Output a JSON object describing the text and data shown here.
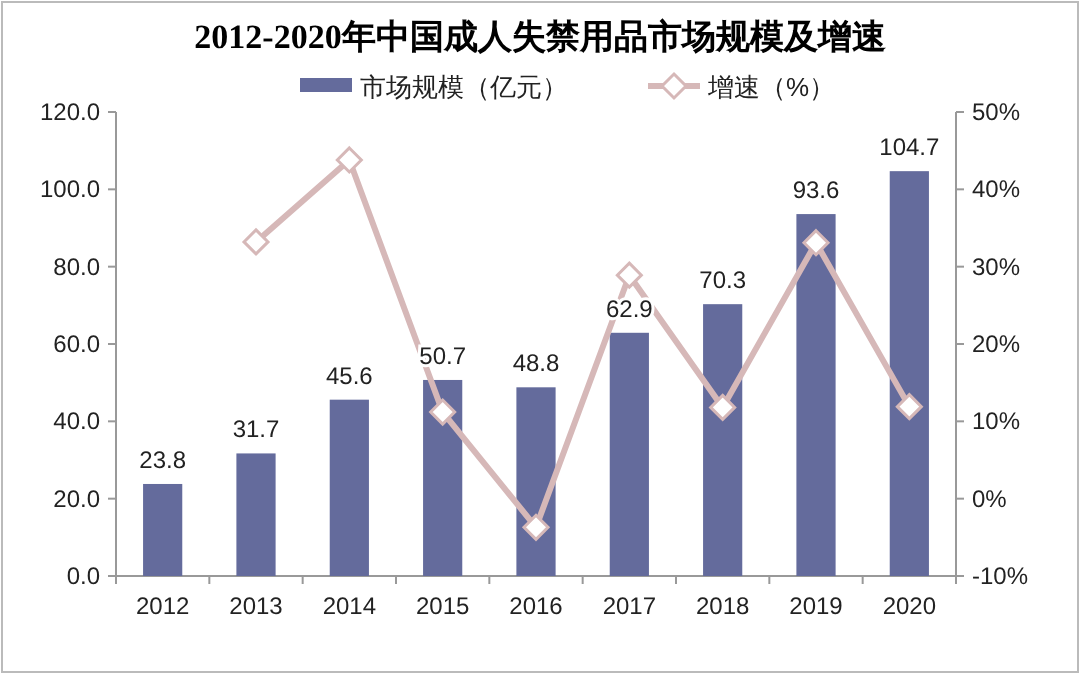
{
  "chart_data": {
    "type": "bar",
    "title": "2012-2020年中国成人失禁用品市场规模及增速",
    "categories": [
      "2012",
      "2013",
      "2014",
      "2015",
      "2016",
      "2017",
      "2018",
      "2019",
      "2020"
    ],
    "series": [
      {
        "name": "市场规模（亿元）",
        "color": "#646b9c",
        "values": [
          23.8,
          31.7,
          45.6,
          50.7,
          48.8,
          62.9,
          70.3,
          93.6,
          104.7
        ],
        "value_labels": [
          "23.8",
          "31.7",
          "45.6",
          "50.7",
          "48.8",
          "62.9",
          "70.3",
          "93.6",
          "104.7"
        ]
      },
      {
        "name": "增速（%）",
        "type": "line",
        "axis": "y2",
        "color": "#d6b8b8",
        "marker": "diamond",
        "values": [
          null,
          33.2,
          43.8,
          11.2,
          -3.7,
          28.9,
          11.8,
          33.1,
          11.9
        ]
      }
    ],
    "ylim": [
      0,
      120
    ],
    "yticks": [
      {
        "value": 0,
        "label": "0.0"
      },
      {
        "value": 20,
        "label": "20.0"
      },
      {
        "value": 40,
        "label": "40.0"
      },
      {
        "value": 60,
        "label": "60.0"
      },
      {
        "value": 80,
        "label": "80.0"
      },
      {
        "value": 100,
        "label": "100.0"
      },
      {
        "value": 120,
        "label": "120.0"
      }
    ],
    "y2lim": [
      -10,
      50
    ],
    "y2ticks": [
      {
        "value": -10,
        "label": "-10%"
      },
      {
        "value": 0,
        "label": "0%"
      },
      {
        "value": 10,
        "label": "10%"
      },
      {
        "value": 20,
        "label": "20%"
      },
      {
        "value": 30,
        "label": "30%"
      },
      {
        "value": 40,
        "label": "40%"
      },
      {
        "value": 50,
        "label": "50%"
      }
    ],
    "grid": false,
    "legend": "top"
  }
}
